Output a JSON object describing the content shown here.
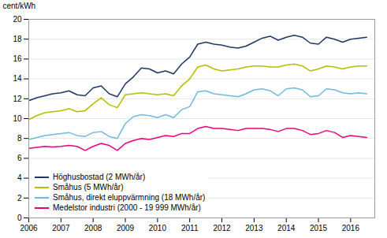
{
  "chart_data": {
    "type": "line",
    "ylabel": "cent/kWh",
    "x": [
      2006.0,
      2006.25,
      2006.5,
      2006.75,
      2007.0,
      2007.25,
      2007.5,
      2007.75,
      2008.0,
      2008.25,
      2008.5,
      2008.75,
      2009.0,
      2009.25,
      2009.5,
      2009.75,
      2010.0,
      2010.25,
      2010.5,
      2010.75,
      2011.0,
      2011.25,
      2011.5,
      2011.75,
      2012.0,
      2012.25,
      2012.5,
      2012.75,
      2013.0,
      2013.25,
      2013.5,
      2013.75,
      2014.0,
      2014.25,
      2014.5,
      2014.75,
      2015.0,
      2015.25,
      2015.5,
      2015.75,
      2016.0,
      2016.25,
      2016.5
    ],
    "series": [
      {
        "name": "Höghusbostad (2 MWh/år)",
        "color": "#1f3864",
        "values": [
          11.8,
          12.1,
          12.3,
          12.5,
          12.6,
          12.8,
          12.4,
          12.3,
          13.1,
          13.3,
          12.5,
          12.2,
          13.5,
          14.2,
          15.1,
          15.0,
          14.6,
          14.8,
          14.5,
          15.5,
          16.2,
          17.5,
          17.7,
          17.5,
          17.4,
          17.2,
          17.1,
          17.3,
          17.7,
          18.1,
          18.3,
          17.9,
          18.2,
          18.4,
          18.2,
          17.6,
          17.5,
          18.2,
          18.0,
          17.7,
          18.0,
          18.1,
          18.2
        ]
      },
      {
        "name": "Småhus (5 MWh/år)",
        "color": "#b5bd00",
        "values": [
          9.9,
          10.3,
          10.6,
          10.7,
          10.8,
          11.0,
          10.7,
          10.8,
          11.5,
          12.1,
          11.4,
          11.1,
          12.4,
          12.5,
          12.6,
          12.5,
          12.4,
          12.5,
          12.3,
          13.3,
          14.0,
          15.2,
          15.4,
          15.0,
          14.8,
          14.9,
          15.0,
          15.2,
          15.3,
          15.3,
          15.2,
          15.2,
          15.4,
          15.5,
          15.3,
          14.8,
          15.0,
          15.3,
          15.2,
          15.0,
          15.2,
          15.3,
          15.3
        ]
      },
      {
        "name": "Småhus, direkt eluppvärmning (18 MWh/år)",
        "color": "#70b8e0",
        "values": [
          7.9,
          8.1,
          8.3,
          8.4,
          8.5,
          8.6,
          8.3,
          8.2,
          8.6,
          8.7,
          8.2,
          8.0,
          9.5,
          10.2,
          10.4,
          10.3,
          10.1,
          10.4,
          10.1,
          10.9,
          11.2,
          12.7,
          12.8,
          12.5,
          12.4,
          12.3,
          12.2,
          12.5,
          12.9,
          13.0,
          12.8,
          12.3,
          13.0,
          13.1,
          12.9,
          12.2,
          12.3,
          13.0,
          12.9,
          12.6,
          12.5,
          12.6,
          12.5
        ]
      },
      {
        "name": "Medelstor industri (2000 - 19 999 MWh/år)",
        "color": "#e8007d",
        "values": [
          7.0,
          7.1,
          7.2,
          7.15,
          7.2,
          7.3,
          7.2,
          6.8,
          7.2,
          7.5,
          7.3,
          6.8,
          7.5,
          7.8,
          8.0,
          7.9,
          8.1,
          8.3,
          8.2,
          8.5,
          8.5,
          9.0,
          9.2,
          9.0,
          9.0,
          8.9,
          8.8,
          9.0,
          9.0,
          9.0,
          8.9,
          8.7,
          9.0,
          9.0,
          8.8,
          8.4,
          8.5,
          8.8,
          8.6,
          8.1,
          8.3,
          8.2,
          8.1
        ]
      }
    ],
    "xlim": [
      2006.0,
      2016.75
    ],
    "xticks": [
      2006,
      2007,
      2008,
      2009,
      2010,
      2011,
      2012,
      2013,
      2014,
      2015,
      2016
    ],
    "ylim": [
      0,
      20
    ],
    "yticks": [
      0,
      2,
      4,
      6,
      8,
      10,
      12,
      14,
      16,
      18,
      20
    ],
    "grid": true,
    "legend": "lower left"
  }
}
